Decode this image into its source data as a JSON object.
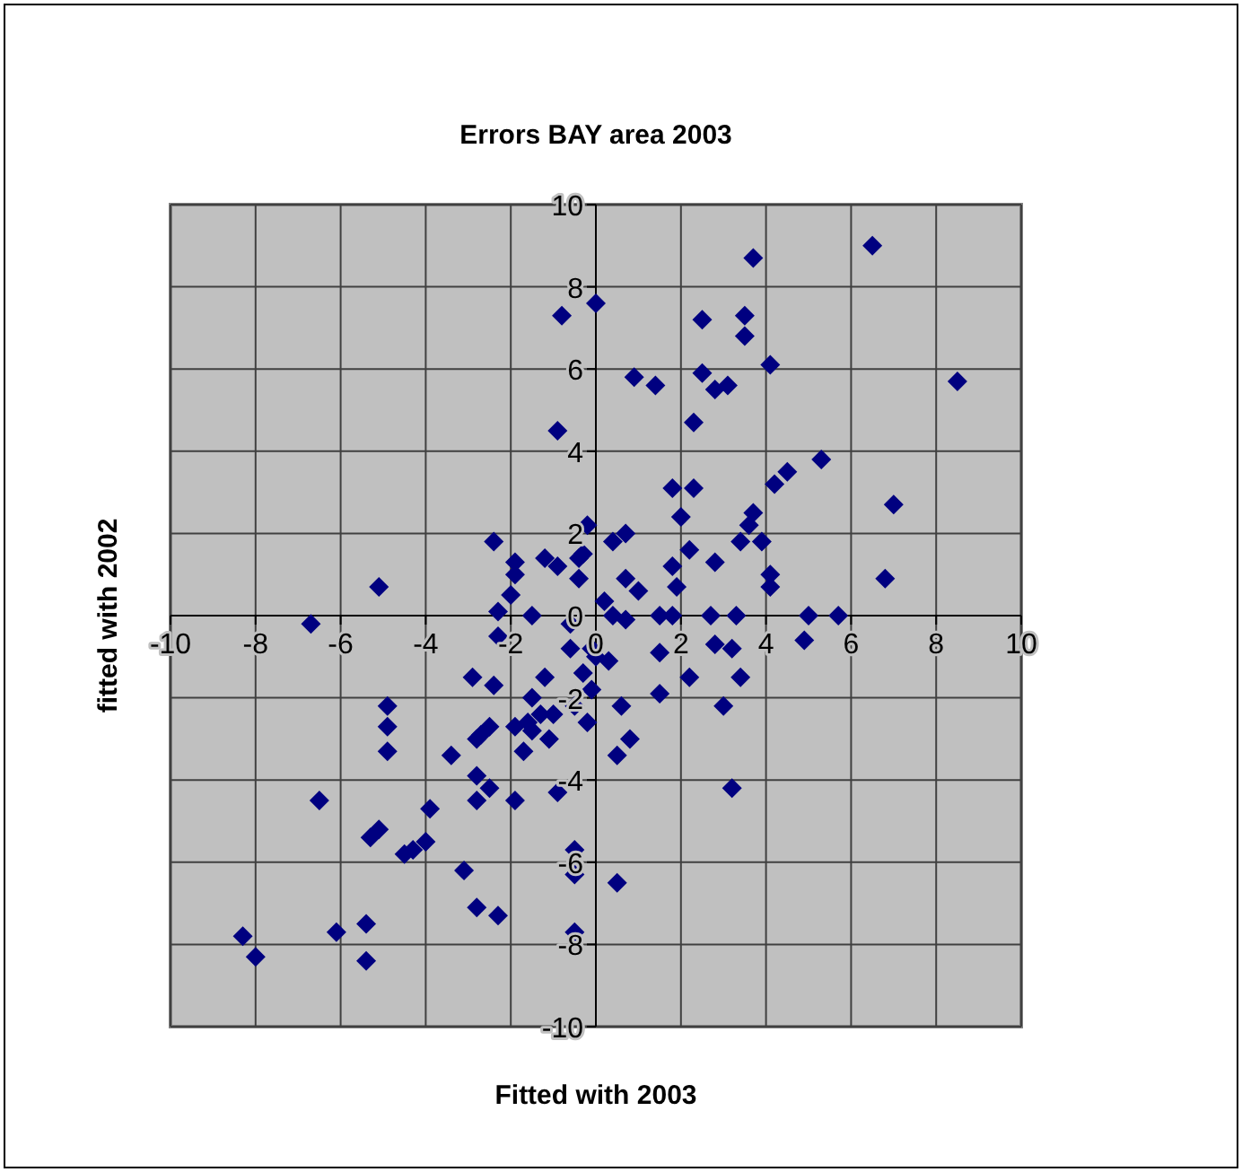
{
  "chart_data": {
    "type": "scatter",
    "title": "Errors BAY area 2003",
    "xlabel": "Fitted with 2003",
    "ylabel": "fitted with 2002",
    "color": "#000080",
    "marker": "diamond",
    "grid": true,
    "xlim": [
      -10,
      10
    ],
    "ylim": [
      -10,
      10
    ],
    "xticks": [
      -10,
      -8,
      -6,
      -4,
      -2,
      0,
      2,
      4,
      6,
      8,
      10
    ],
    "yticks": [
      -10,
      -8,
      -6,
      -4,
      -2,
      0,
      2,
      4,
      6,
      8,
      10
    ],
    "x": [
      6.5,
      3.7,
      0,
      2.5,
      3.5,
      3.5,
      4.1,
      2.5,
      0.9,
      8.5,
      1.4,
      3.1,
      2.8,
      2.3,
      5.3,
      4.5,
      4.2,
      1.8,
      2.3,
      7.0,
      3.7,
      3.6,
      2.0,
      0.7,
      0.4,
      3.4,
      3.9,
      2.2,
      2.8,
      1.8,
      4.1,
      0.7,
      6.8,
      1.9,
      1.0,
      4.1,
      0.2,
      1.5,
      1.8,
      2.7,
      3.3,
      5.0,
      5.7,
      0.4,
      0.7,
      -0.8,
      -0.9,
      -0.2,
      -2.4,
      -1.2,
      -0.9,
      -0.4,
      -0.3,
      -1.9,
      -1.9,
      -0.4,
      -5.1,
      -2.0,
      -2.3,
      -1.5,
      -6.7,
      -2.3,
      -0.6,
      -0.1,
      -0.6,
      -2.9,
      -1.2,
      -0.3,
      -2.4,
      -0.1,
      -1.5,
      -4.9,
      -0.5,
      -1.3,
      -1.0,
      -1.6,
      -0.2,
      -4.9,
      -2.5,
      -1.9,
      -1.5,
      -2.7,
      -2.8,
      -1.1,
      -4.9,
      -1.7,
      -3.4,
      -2.8,
      -2.5,
      -0.9,
      -2.8,
      -1.9,
      -6.5,
      -3.9,
      -5.1,
      -5.3,
      -4.0,
      -4.3,
      -4.5,
      -0.5,
      -0.5,
      -3.1,
      -2.8,
      -2.3,
      -5.4,
      -0.5,
      -6.1,
      -8.3,
      -8.0,
      -5.4,
      4.9,
      1.5,
      2.8,
      3.2,
      0.0,
      0.3,
      2.2,
      3.4,
      1.5,
      0.6,
      3.0,
      0.8,
      0.5,
      3.2,
      0.5
    ],
    "values": [
      9.0,
      8.7,
      7.6,
      7.2,
      7.3,
      6.8,
      6.1,
      5.9,
      5.8,
      5.7,
      5.6,
      5.6,
      5.5,
      4.7,
      3.8,
      3.5,
      3.2,
      3.1,
      3.1,
      2.7,
      2.5,
      2.2,
      2.4,
      2.0,
      1.8,
      1.8,
      1.8,
      1.6,
      1.3,
      1.2,
      1.0,
      0.9,
      0.9,
      0.7,
      0.6,
      0.7,
      0.35,
      0,
      0,
      0,
      0,
      0,
      0,
      0,
      -0.1,
      7.3,
      4.5,
      2.2,
      1.8,
      1.4,
      1.2,
      1.4,
      1.5,
      1.3,
      1.0,
      0.9,
      0.7,
      0.5,
      0.1,
      0,
      -0.2,
      -0.5,
      -0.2,
      -0.8,
      -0.8,
      -1.5,
      -1.5,
      -1.4,
      -1.7,
      -1.8,
      -2.0,
      -2.2,
      -2.2,
      -2.4,
      -2.4,
      -2.6,
      -2.6,
      -2.7,
      -2.7,
      -2.7,
      -2.8,
      -2.9,
      -3.0,
      -3.0,
      -3.3,
      -3.3,
      -3.4,
      -3.9,
      -4.2,
      -4.3,
      -4.5,
      -4.5,
      -4.5,
      -4.7,
      -5.2,
      -5.4,
      -5.5,
      -5.7,
      -5.8,
      -5.7,
      -6.3,
      -6.2,
      -7.1,
      -7.3,
      -7.5,
      -7.7,
      -7.7,
      -7.8,
      -8.3,
      -8.4,
      -0.6,
      -0.9,
      -0.7,
      -0.8,
      -1.0,
      -1.1,
      -1.5,
      -1.5,
      -1.9,
      -2.2,
      -2.2,
      -3.0,
      -3.4,
      -4.2,
      -6.5
    ]
  }
}
